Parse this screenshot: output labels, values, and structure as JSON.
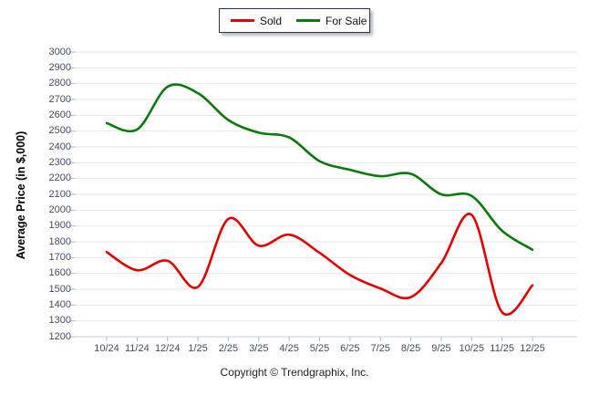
{
  "legend": {
    "items": [
      {
        "label": "Sold",
        "color": "#e00000"
      },
      {
        "label": "For Sale",
        "color": "#0a7a0a"
      }
    ]
  },
  "y_axis": {
    "title": "Average Price (in $,000)"
  },
  "footer": {
    "copyright": "Copyright © Trendgraphix, Inc."
  },
  "chart_data": {
    "type": "line",
    "categories": [
      "10/24",
      "11/24",
      "12/24",
      "1/25",
      "2/25",
      "3/25",
      "4/25",
      "5/25",
      "6/25",
      "7/25",
      "8/25",
      "9/25",
      "10/25",
      "11/25",
      "12/25"
    ],
    "series": [
      {
        "name": "Sold",
        "color": "#e00000",
        "values": [
          1735,
          1620,
          1680,
          1515,
          1945,
          1775,
          1845,
          1730,
          1590,
          1505,
          1450,
          1665,
          1970,
          1355,
          1525
        ]
      },
      {
        "name": "For Sale",
        "color": "#0a7a0a",
        "values": [
          2550,
          2510,
          2780,
          2740,
          2570,
          2490,
          2460,
          2310,
          2255,
          2215,
          2230,
          2100,
          2090,
          1870,
          1750
        ]
      }
    ],
    "title": "",
    "xlabel": "",
    "ylabel": "Average Price (in $,000)",
    "ylim": [
      1200,
      3000
    ],
    "ytick_step": 100,
    "grid": true,
    "curve": "smooth",
    "legend_position": "top-center",
    "style": {
      "grid_color": "#e7e7e7",
      "baseline_color": "#c9ceda",
      "tick_color": "#a9bcd6",
      "label_color": "#424c5e",
      "line_width": 2.6
    }
  }
}
